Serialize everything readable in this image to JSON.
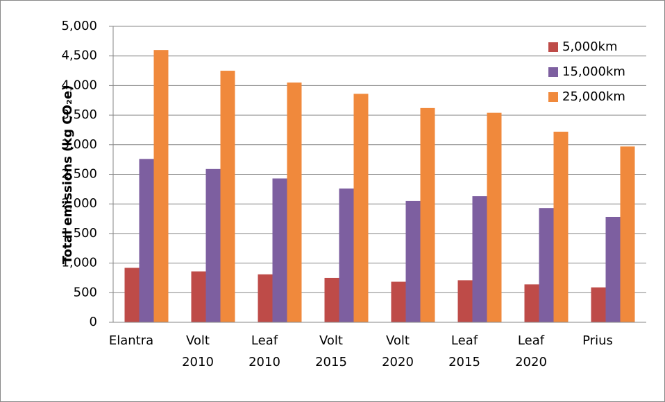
{
  "chart_data": {
    "type": "bar",
    "y_label": "Total emissions (kg CO₂e)",
    "categories": [
      [
        "Elantra"
      ],
      [
        "Volt",
        "2010"
      ],
      [
        "Leaf",
        "2010"
      ],
      [
        "Volt",
        "2015"
      ],
      [
        "Volt",
        "2020"
      ],
      [
        "Leaf",
        "2015"
      ],
      [
        "Leaf",
        "2020"
      ],
      [
        "Prius"
      ]
    ],
    "series": [
      {
        "name": "5,000km",
        "color": "#be4b48",
        "values": [
          920,
          860,
          810,
          750,
          685,
          710,
          640,
          590
        ]
      },
      {
        "name": "15,000km",
        "color": "#7d5fa0",
        "values": [
          2760,
          2590,
          2430,
          2260,
          2050,
          2130,
          1930,
          1780
        ]
      },
      {
        "name": "25,000km",
        "color": "#f0893c",
        "values": [
          4600,
          4250,
          4050,
          3860,
          3620,
          3540,
          3220,
          2970
        ]
      }
    ],
    "ylim": [
      0,
      5000
    ],
    "yticks": [
      0,
      500,
      {
        "value": 1000,
        "label": "1,000"
      },
      {
        "value": 1500,
        "label": "1,500"
      },
      {
        "value": 2000,
        "label": "2,000"
      },
      {
        "value": 2500,
        "label": "2,500"
      },
      {
        "value": 3000,
        "label": "3,000"
      },
      {
        "value": 3500,
        "label": "3,500"
      },
      {
        "value": 4000,
        "label": "4,000"
      },
      {
        "value": 4500,
        "label": "4,500"
      },
      {
        "value": 5000,
        "label": "5,000"
      }
    ],
    "grid": true,
    "legend": "upper right"
  }
}
